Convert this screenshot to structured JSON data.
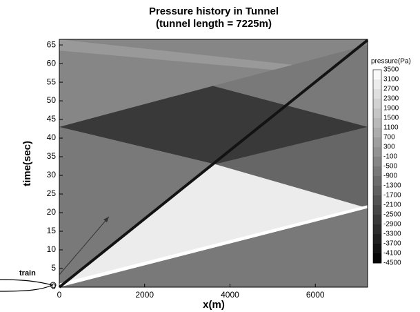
{
  "chart_data": {
    "type": "heatmap",
    "title": "Pressure history in Tunnel",
    "subtitle": "(tunnel length = 7225m)",
    "x_label": "x(m)",
    "y_label": "time(sec)",
    "xlim": [
      0,
      7225
    ],
    "xticks": [
      0,
      2000,
      4000,
      6000
    ],
    "ylim": [
      0,
      66.5
    ],
    "yticks": [
      0,
      5,
      10,
      15,
      20,
      25,
      30,
      35,
      40,
      45,
      50,
      55,
      60,
      65
    ],
    "background_value": -700,
    "regions": [
      {
        "x": [
          0,
          7225,
          7225,
          0
        ],
        "y": [
          43,
          65,
          66.5,
          66.5
        ],
        "value": -300
      },
      {
        "x": [
          0,
          7225,
          7225,
          0
        ],
        "y": [
          63.5,
          56,
          57.5,
          66.5
        ],
        "value": 300
      },
      {
        "x": [
          3600,
          7225,
          7225
        ],
        "y": [
          54,
          43,
          65
        ],
        "value": -700
      },
      {
        "x": [
          3650,
          7225,
          7225
        ],
        "y": [
          33,
          21.2,
          43
        ],
        "value": -1300
      },
      {
        "x": [
          0,
          3600,
          7225,
          3650
        ],
        "y": [
          43,
          54,
          43,
          33
        ],
        "value": -2700
      },
      {
        "x": [
          0,
          7225,
          3650
        ],
        "y": [
          0,
          21.2,
          33
        ],
        "value": 2900
      },
      {
        "x": [
          0,
          7225,
          7225,
          0
        ],
        "y": [
          0,
          21.2,
          22,
          1
        ],
        "value": 3500
      }
    ],
    "train_path": {
      "x": [
        0,
        7225
      ],
      "y": [
        0,
        66.3
      ],
      "value": -3900
    },
    "annotation": "train",
    "colorbar": {
      "title": "pressure(Pa)",
      "lim": [
        -4500,
        3500
      ],
      "ticks": [
        3500,
        3100,
        2700,
        2300,
        1900,
        1500,
        1100,
        700,
        300,
        -100,
        -500,
        -900,
        -1300,
        -1700,
        -2100,
        -2500,
        -2900,
        -3300,
        -3700,
        -4100,
        -4500
      ]
    }
  }
}
